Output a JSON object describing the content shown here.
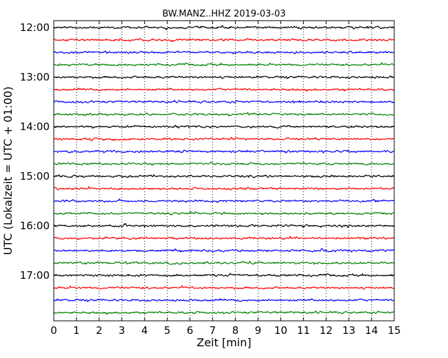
{
  "chart_data": {
    "type": "line",
    "title": "BW.MANZ..HHZ 2019-03-03",
    "xlabel": "Zeit  [min]",
    "ylabel": "UTC (Lokalzeit = UTC + 01:00)",
    "xlim": [
      0,
      15
    ],
    "x_ticks": [
      0,
      1,
      2,
      3,
      4,
      5,
      6,
      7,
      8,
      9,
      10,
      11,
      12,
      13,
      14,
      15
    ],
    "y_tick_labels": [
      "12:00",
      "13:00",
      "14:00",
      "15:00",
      "16:00",
      "17:00"
    ],
    "grid": "vertical dotted",
    "trace_colors": [
      "#000000",
      "#ff0000",
      "#0000ff",
      "#008000"
    ],
    "traces": [
      {
        "start": "12:00",
        "color": "#000000"
      },
      {
        "start": "12:15",
        "color": "#ff0000"
      },
      {
        "start": "12:30",
        "color": "#0000ff"
      },
      {
        "start": "12:45",
        "color": "#008000"
      },
      {
        "start": "13:00",
        "color": "#000000"
      },
      {
        "start": "13:15",
        "color": "#ff0000"
      },
      {
        "start": "13:30",
        "color": "#0000ff"
      },
      {
        "start": "13:45",
        "color": "#008000"
      },
      {
        "start": "14:00",
        "color": "#000000"
      },
      {
        "start": "14:15",
        "color": "#ff0000"
      },
      {
        "start": "14:30",
        "color": "#0000ff"
      },
      {
        "start": "14:45",
        "color": "#008000"
      },
      {
        "start": "15:00",
        "color": "#000000"
      },
      {
        "start": "15:15",
        "color": "#ff0000"
      },
      {
        "start": "15:30",
        "color": "#0000ff"
      },
      {
        "start": "15:45",
        "color": "#008000"
      },
      {
        "start": "16:00",
        "color": "#000000"
      },
      {
        "start": "16:15",
        "color": "#ff0000"
      },
      {
        "start": "16:30",
        "color": "#0000ff"
      },
      {
        "start": "16:45",
        "color": "#008000"
      },
      {
        "start": "17:00",
        "color": "#000000"
      },
      {
        "start": "17:15",
        "color": "#ff0000"
      },
      {
        "start": "17:30",
        "color": "#0000ff"
      },
      {
        "start": "17:45",
        "color": "#008000"
      }
    ]
  }
}
